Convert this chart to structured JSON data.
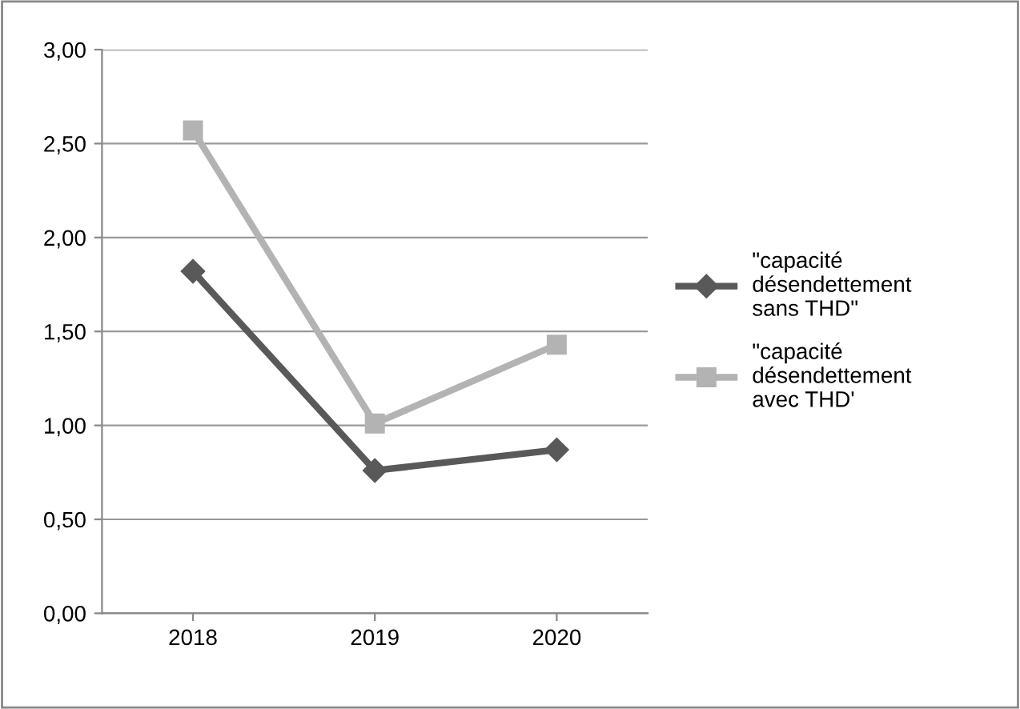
{
  "chart_data": {
    "type": "line",
    "categories": [
      "2018",
      "2019",
      "2020"
    ],
    "series": [
      {
        "name": "\"capacité désendettement sans THD\"",
        "color": "#595959",
        "marker": "diamond",
        "values": [
          1.82,
          0.76,
          0.87
        ]
      },
      {
        "name": "\"capacité désendettement avec THD'",
        "color": "#b3b3b3",
        "marker": "square",
        "values": [
          2.57,
          1.01,
          1.43
        ]
      }
    ],
    "ylim": [
      0,
      3
    ],
    "yticks": [
      {
        "value": 0,
        "label": "0,00"
      },
      {
        "value": 0.5,
        "label": "0,50"
      },
      {
        "value": 1,
        "label": "1,00"
      },
      {
        "value": 1.5,
        "label": "1,50"
      },
      {
        "value": 2,
        "label": "2,00"
      },
      {
        "value": 2.5,
        "label": "2,50"
      },
      {
        "value": 3,
        "label": "3,00"
      }
    ],
    "grid": "y",
    "legend": "right",
    "line_style": "solid"
  }
}
